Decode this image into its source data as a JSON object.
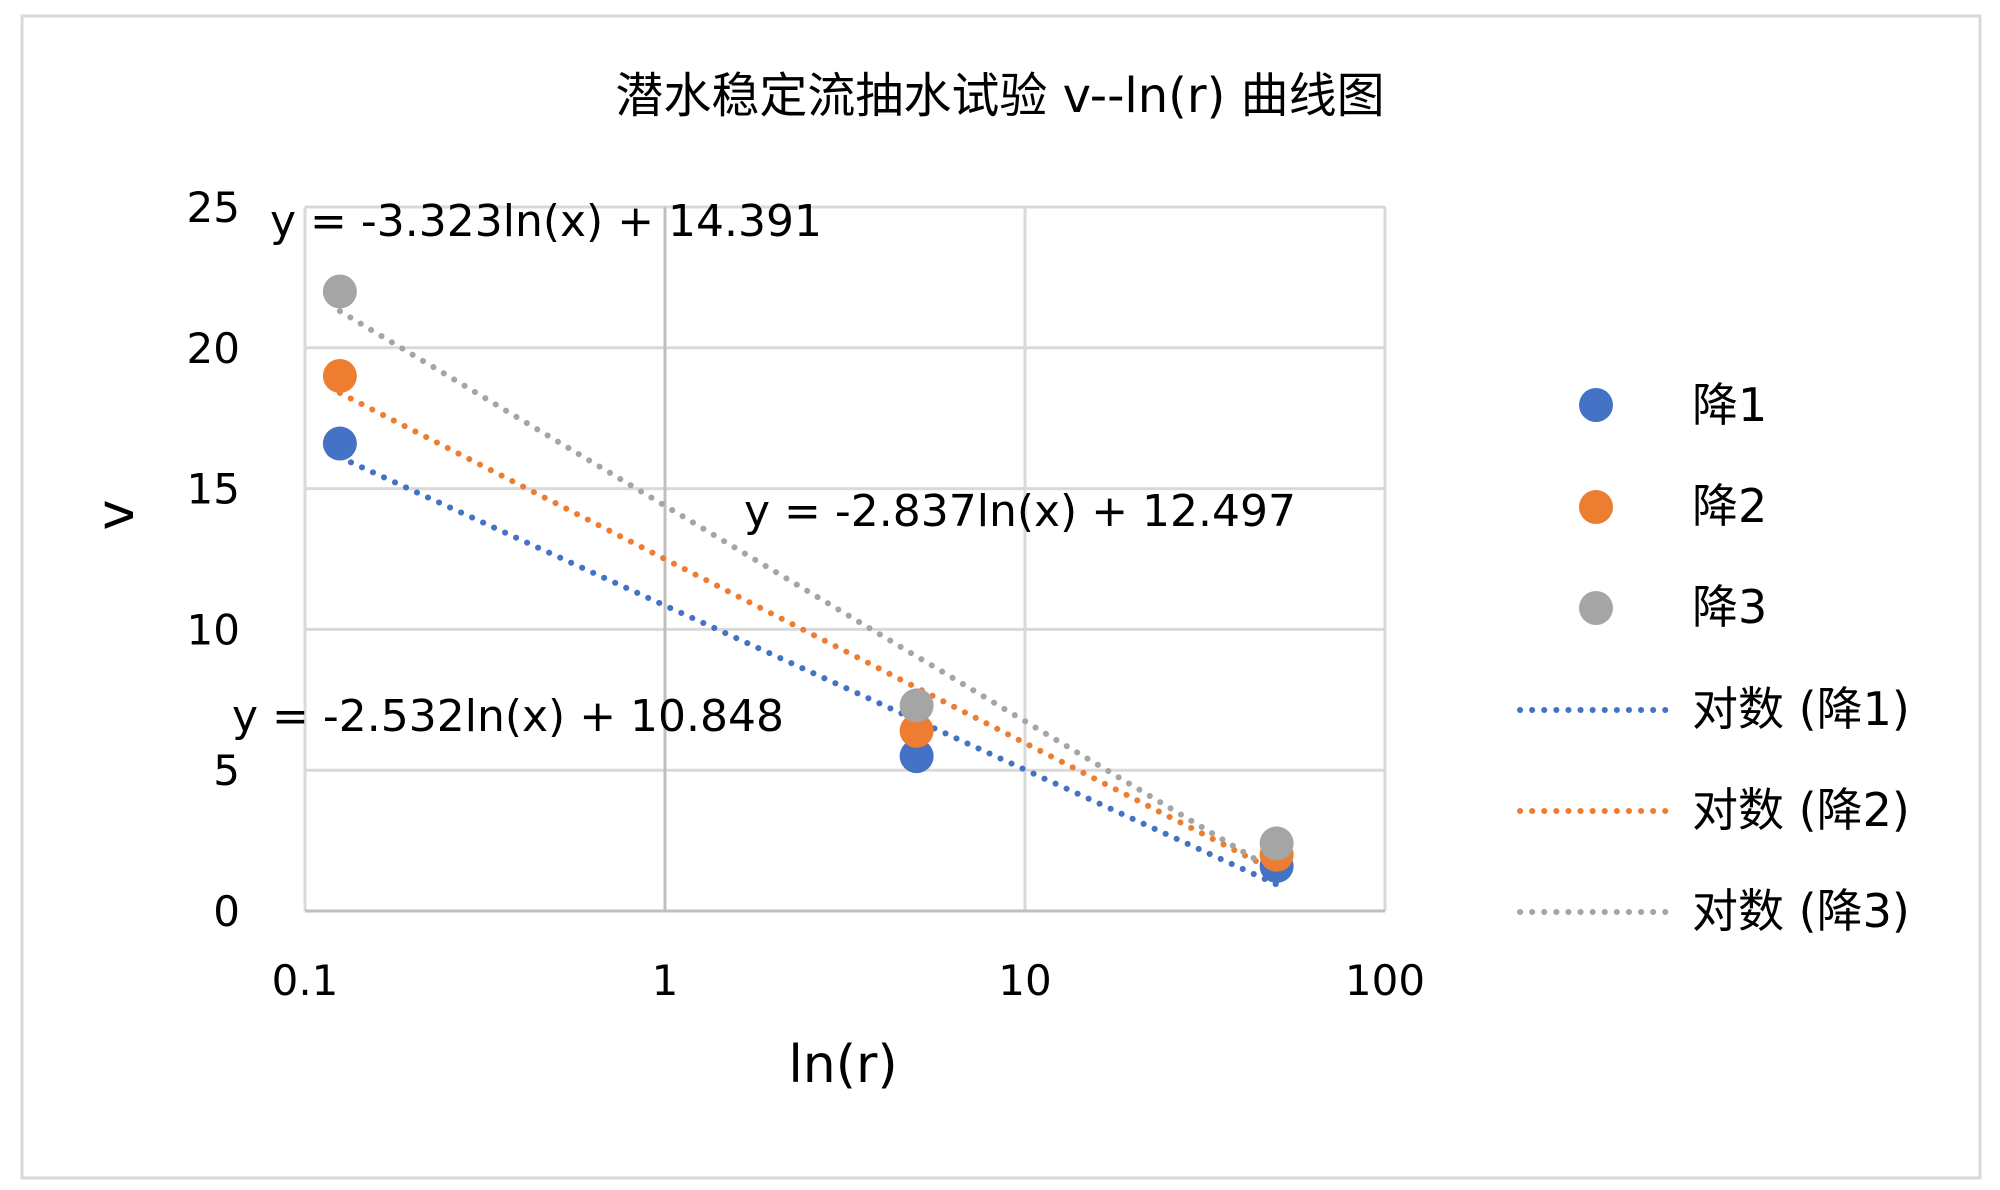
{
  "chart_data": {
    "type": "scatter",
    "title": "潜水稳定流抽水试验 v--ln(r) 曲线图",
    "xlabel": "ln(r)",
    "ylabel": "v",
    "x_scale": "log",
    "xlim": [
      0.1,
      100
    ],
    "ylim": [
      0,
      25
    ],
    "x_ticks": [
      "0.1",
      "1",
      "10",
      "100"
    ],
    "y_ticks": [
      "0",
      "5",
      "10",
      "15",
      "20",
      "25"
    ],
    "grid": true,
    "legend_position": "right",
    "series": [
      {
        "name": "降1",
        "color": "#4472C4",
        "x": [
          0.125,
          5,
          50
        ],
        "y": [
          16.6,
          5.5,
          1.6
        ]
      },
      {
        "name": "降2",
        "color": "#ED7D31",
        "x": [
          0.125,
          5,
          50
        ],
        "y": [
          19.0,
          6.4,
          2.0
        ]
      },
      {
        "name": "降3",
        "color": "#A5A5A5",
        "x": [
          0.125,
          5,
          50
        ],
        "y": [
          22.0,
          7.3,
          2.4
        ]
      }
    ],
    "trendlines": [
      {
        "name": "对数 (降1)",
        "color": "#4472C4",
        "a": -2.532,
        "b": 10.848,
        "x_range": [
          0.125,
          50
        ],
        "equation": "y = -2.532ln(x) + 10.848"
      },
      {
        "name": "对数 (降2)",
        "color": "#ED7D31",
        "a": -2.837,
        "b": 12.497,
        "x_range": [
          0.125,
          50
        ],
        "equation": "y = -2.837ln(x) + 12.497"
      },
      {
        "name": "对数 (降3)",
        "color": "#A5A5A5",
        "a": -3.323,
        "b": 14.391,
        "x_range": [
          0.125,
          50
        ],
        "equation": "y = -3.323ln(x) + 14.391"
      }
    ]
  }
}
